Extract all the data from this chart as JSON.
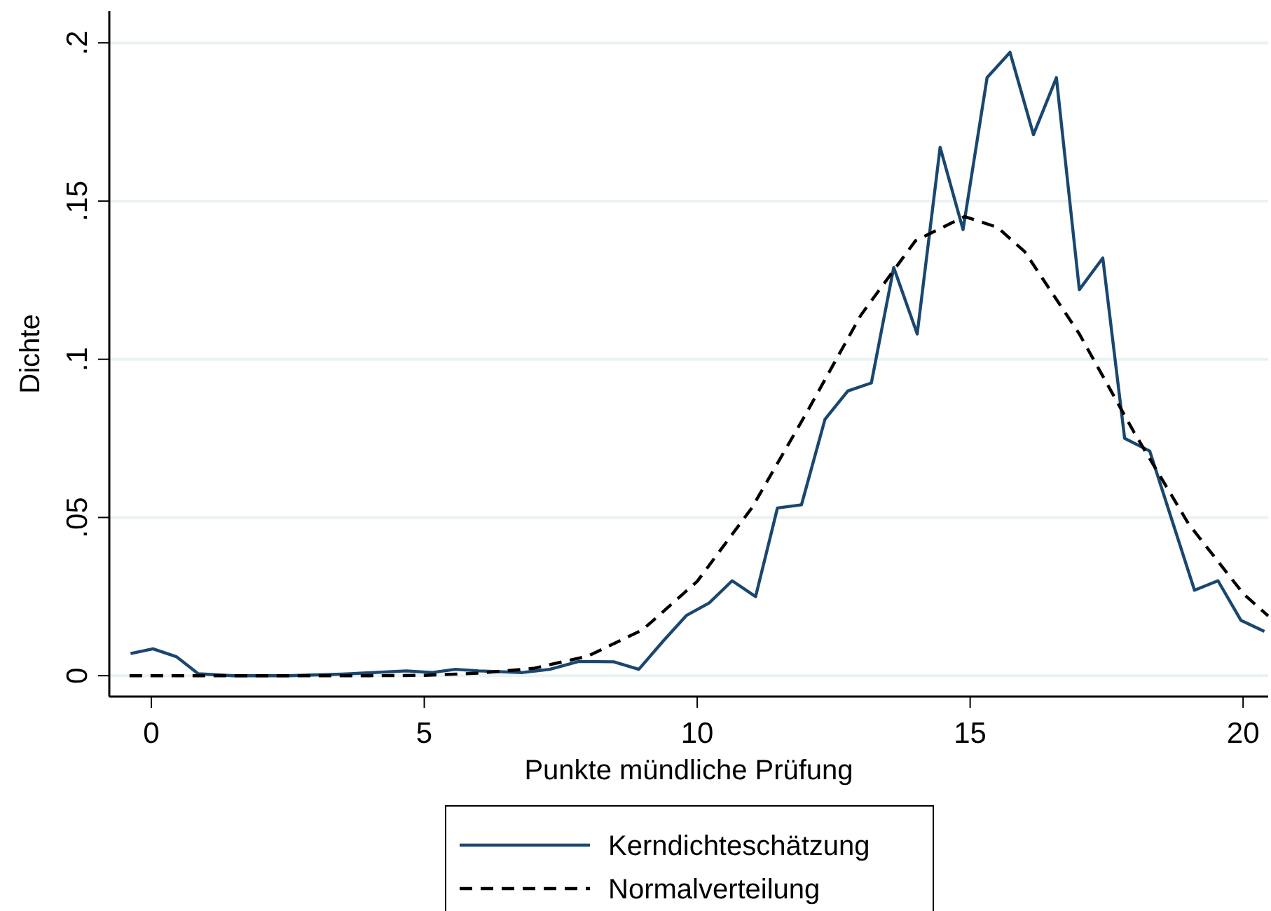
{
  "chart_data": {
    "type": "line",
    "xlabel": "Punkte mündliche Prüfung",
    "ylabel": "Dichte",
    "xlim": [
      -0.77,
      20.46
    ],
    "ylim": [
      -0.0066,
      0.21
    ],
    "xticks": [
      0,
      5,
      10,
      15,
      20
    ],
    "yticks": [
      0,
      {
        "value": 0.05,
        "label": ".05"
      },
      {
        "value": 0.1,
        "label": ".1"
      },
      {
        "value": 0.15,
        "label": ".15"
      },
      {
        "value": 0.2,
        "label": ".2"
      }
    ],
    "grid": "y",
    "legend": "bottom",
    "series": [
      {
        "name": "Kerndichteschätzung",
        "color": "#1a476f",
        "line_style": "solid",
        "x": [
          -0.38,
          0.03,
          0.46,
          0.86,
          1.5,
          2.5,
          3.5,
          4.67,
          5.15,
          5.57,
          6.0,
          6.8,
          7.3,
          7.83,
          8.47,
          8.93,
          9.38,
          9.8,
          10.22,
          10.64,
          11.07,
          11.47,
          11.91,
          12.34,
          12.76,
          13.19,
          13.6,
          14.03,
          14.45,
          14.87,
          15.31,
          15.73,
          16.16,
          16.58,
          17.0,
          17.43,
          17.83,
          18.29,
          18.7,
          19.11,
          19.54,
          19.96,
          20.39
        ],
        "values": [
          0.007,
          0.0085,
          0.006,
          0.0006,
          0,
          0,
          0.0005,
          0.0015,
          0.001,
          0.002,
          0.0015,
          0.001,
          0.002,
          0.0045,
          0.0044,
          0.002,
          0.011,
          0.019,
          0.023,
          0.03,
          0.025,
          0.053,
          0.054,
          0.081,
          0.09,
          0.0925,
          0.129,
          0.108,
          0.167,
          0.141,
          0.189,
          0.197,
          0.171,
          0.189,
          0.122,
          0.132,
          0.075,
          0.071,
          0.049,
          0.027,
          0.03,
          0.0175,
          0.014
        ]
      },
      {
        "name": "Normalverteilung",
        "color": "#000000",
        "line_style": "dashed",
        "x": [
          -0.4,
          2,
          4,
          5,
          6,
          7,
          8,
          9,
          10,
          11,
          12,
          13,
          14,
          14.9,
          15.5,
          16,
          17,
          18,
          19,
          20,
          20.46
        ],
        "values": [
          0,
          0,
          0,
          0.0001,
          0.0008,
          0.0023,
          0.0062,
          0.0145,
          0.0298,
          0.053,
          0.083,
          0.114,
          0.1375,
          0.1451,
          0.1417,
          0.134,
          0.108,
          0.077,
          0.048,
          0.026,
          0.0189
        ]
      }
    ]
  }
}
